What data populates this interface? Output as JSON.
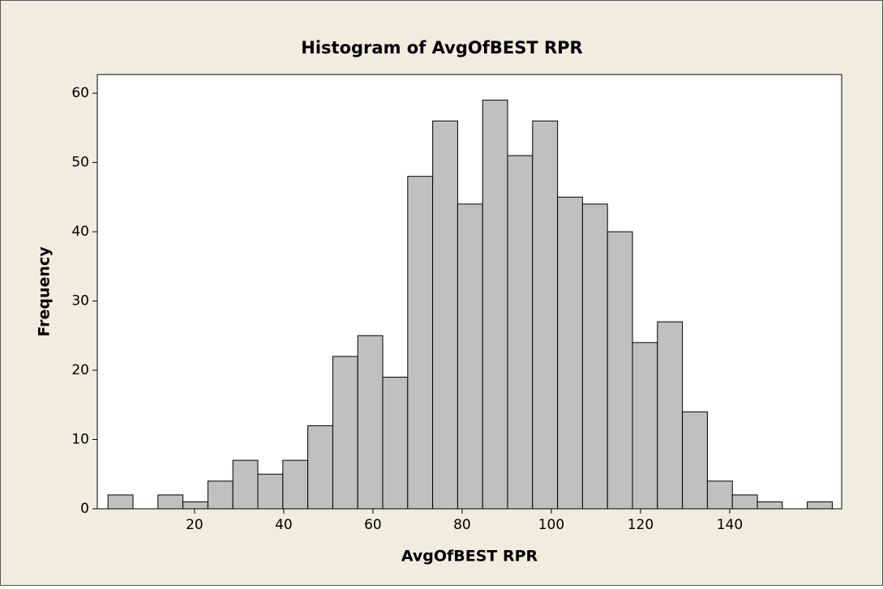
{
  "chart_data": {
    "type": "histogram",
    "title": "Histogram of AvgOfBEST RPR",
    "x_label": "AvgOfBEST RPR",
    "y_label": "Frequency",
    "bins": [
      0.6,
      6.2,
      11.8,
      17.4,
      23,
      28.6,
      34.2,
      39.8,
      45.4,
      51,
      56.6,
      62.2,
      67.8,
      73.4,
      79,
      84.6,
      90.2,
      95.8,
      101.4,
      107,
      112.6,
      118.2,
      123.8,
      129.4,
      135,
      140.6,
      146.2,
      151.8,
      157.4,
      163
    ],
    "values": [
      2,
      0,
      2,
      1,
      4,
      7,
      5,
      7,
      12,
      22,
      25,
      19,
      48,
      56,
      44,
      59,
      51,
      56,
      45,
      44,
      40,
      24,
      27,
      14,
      4,
      2,
      1,
      0,
      1
    ],
    "color": "#c0c0c0",
    "xlim": [
      -1.8,
      165.1
    ],
    "xticks": [
      20,
      40,
      60,
      80,
      100,
      120,
      140
    ],
    "ylim": [
      0,
      62.7
    ],
    "yticks": [
      0,
      10,
      20,
      30,
      40,
      50,
      60
    ]
  }
}
